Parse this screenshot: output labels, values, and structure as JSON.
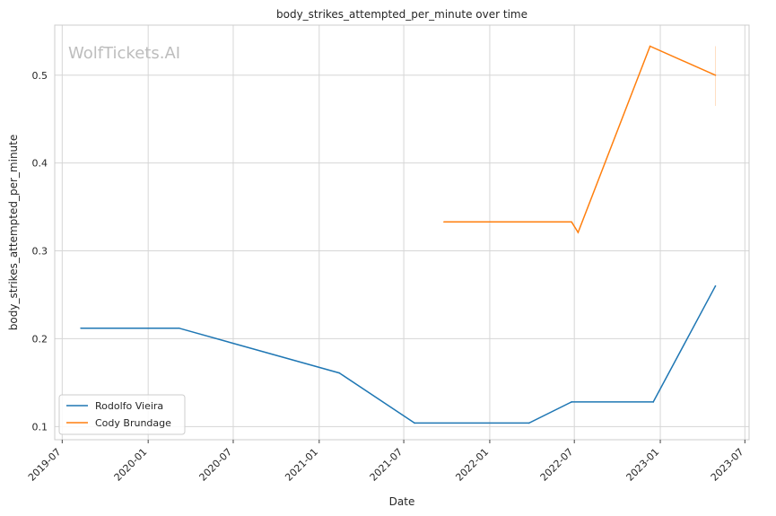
{
  "chart_data": {
    "type": "line",
    "title": "body_strikes_attempted_per_minute over time",
    "xlabel": "Date",
    "ylabel": "body_strikes_attempted_per_minute",
    "watermark": "WolfTickets.AI",
    "xlim": [
      "2019-06-15",
      "2023-07-10"
    ],
    "ylim": [
      0.085,
      0.557
    ],
    "x_ticks": [
      "2019-07",
      "2020-01",
      "2020-07",
      "2021-01",
      "2021-07",
      "2022-01",
      "2022-07",
      "2023-01",
      "2023-07"
    ],
    "y_ticks": [
      0.1,
      0.2,
      0.3,
      0.4,
      0.5
    ],
    "y_tick_labels": [
      "0.1",
      "0.2",
      "0.3",
      "0.4",
      "0.5"
    ],
    "grid": true,
    "legend_position": "bottom-left",
    "series": [
      {
        "name": "Rodolfo Vieira",
        "color": "#1f77b4",
        "points": [
          {
            "x": "2019-08-10",
            "y": 0.212
          },
          {
            "x": "2020-03-07",
            "y": 0.212
          },
          {
            "x": "2021-02-13",
            "y": 0.161
          },
          {
            "x": "2021-07-24",
            "y": 0.104
          },
          {
            "x": "2022-03-26",
            "y": 0.104
          },
          {
            "x": "2022-06-25",
            "y": 0.128
          },
          {
            "x": "2022-12-17",
            "y": 0.128
          },
          {
            "x": "2023-04-29",
            "y": 0.26
          }
        ]
      },
      {
        "name": "Cody Brundage",
        "color": "#ff7f0e",
        "points": [
          {
            "x": "2021-09-25",
            "y": 0.333
          },
          {
            "x": "2022-06-25",
            "y": 0.333
          },
          {
            "x": "2022-07-09",
            "y": 0.321
          },
          {
            "x": "2022-12-10",
            "y": 0.533
          },
          {
            "x": "2023-04-29",
            "y": 0.5
          }
        ],
        "error_bar": {
          "x": "2023-04-29",
          "low": 0.465,
          "high": 0.533
        }
      }
    ]
  }
}
